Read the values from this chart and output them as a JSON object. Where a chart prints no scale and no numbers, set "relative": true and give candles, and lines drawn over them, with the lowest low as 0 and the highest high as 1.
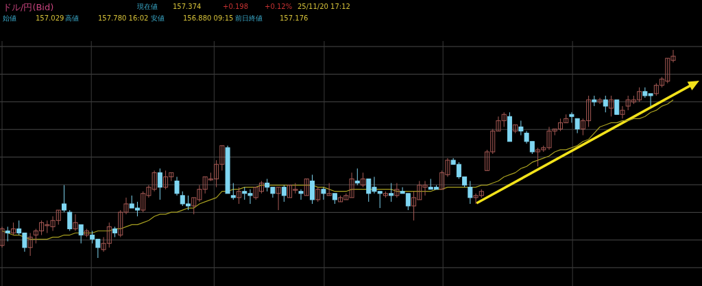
{
  "chart_data": {
    "type": "candlestick",
    "title": "ドル/円(Bid)",
    "annotations": [
      "現在値",
      "157.374",
      "+0.198",
      "+0.12%",
      "25/11/20 17:12",
      "始値",
      "157.029",
      "高値",
      "157.780 16:02",
      "安値",
      "156.880 09:15",
      "前日終値",
      "157.176"
    ],
    "relative": true,
    "grid": true,
    "categories": [
      null,
      null,
      null,
      null,
      null,
      null,
      null,
      null,
      null,
      null,
      null,
      null,
      null,
      null,
      null,
      null,
      null,
      null,
      null,
      null,
      null,
      null,
      null,
      null,
      null,
      null,
      null,
      null,
      null,
      null,
      null,
      null,
      null,
      null,
      null,
      null,
      null,
      null,
      null,
      null,
      null,
      null,
      null,
      null,
      null,
      null,
      null,
      null,
      null,
      null,
      null,
      null,
      null,
      null,
      null,
      null,
      null,
      null,
      null,
      null,
      null,
      null,
      null,
      null,
      null,
      null,
      null,
      null,
      null,
      null,
      null,
      null,
      null,
      null,
      null,
      null,
      null,
      null,
      null,
      null,
      null,
      null,
      null,
      null,
      null,
      null,
      null,
      null,
      null,
      null,
      null,
      null,
      null,
      null,
      null,
      null,
      null,
      null,
      null,
      null,
      null,
      null,
      null,
      null,
      null,
      null,
      null,
      null,
      null,
      null,
      null,
      null,
      null,
      null,
      null,
      null,
      null,
      null,
      null,
      null
    ],
    "ohlc": [
      [
        0.06,
        0.15,
        0.05,
        0.14
      ],
      [
        0.13,
        0.15,
        0.08,
        0.12
      ],
      [
        0.12,
        0.17,
        0.11,
        0.14
      ],
      [
        0.14,
        0.18,
        0.11,
        0.12
      ],
      [
        0.12,
        0.12,
        0.03,
        0.05
      ],
      [
        0.05,
        0.12,
        0.01,
        0.1
      ],
      [
        0.11,
        0.14,
        0.07,
        0.13
      ],
      [
        0.13,
        0.18,
        0.11,
        0.17
      ],
      [
        0.16,
        0.18,
        0.12,
        0.16
      ],
      [
        0.15,
        0.2,
        0.13,
        0.18
      ],
      [
        0.18,
        0.23,
        0.16,
        0.23
      ],
      [
        0.26,
        0.35,
        0.22,
        0.23
      ],
      [
        0.22,
        0.23,
        0.13,
        0.14
      ],
      [
        0.14,
        0.21,
        0.13,
        0.17
      ],
      [
        0.16,
        0.16,
        0.07,
        0.11
      ],
      [
        0.11,
        0.14,
        0.1,
        0.13
      ],
      [
        0.11,
        0.13,
        0.07,
        0.09
      ],
      [
        0.09,
        0.09,
        0,
        0.05
      ],
      [
        0.04,
        0.1,
        0.03,
        0.07
      ],
      [
        0.07,
        0.17,
        0.05,
        0.15
      ],
      [
        0.14,
        0.15,
        0.1,
        0.12
      ],
      [
        0.11,
        0.23,
        0.1,
        0.22
      ],
      [
        0.22,
        0.29,
        0.21,
        0.26
      ],
      [
        0.26,
        0.3,
        0.24,
        0.24
      ],
      [
        0.24,
        0.27,
        0.2,
        0.23
      ],
      [
        0.23,
        0.32,
        0.22,
        0.31
      ],
      [
        0.3,
        0.35,
        0.29,
        0.34
      ],
      [
        0.33,
        0.42,
        0.32,
        0.41
      ],
      [
        0.41,
        0.43,
        0.28,
        0.34
      ],
      [
        0.34,
        0.42,
        0.33,
        0.39
      ],
      [
        0.39,
        0.41,
        0.37,
        0.41
      ],
      [
        0.37,
        0.39,
        0.3,
        0.31
      ],
      [
        0.3,
        0.32,
        0.25,
        0.26
      ],
      [
        0.26,
        0.3,
        0.23,
        0.25
      ],
      [
        0.25,
        0.29,
        0.21,
        0.29
      ],
      [
        0.28,
        0.35,
        0.27,
        0.33
      ],
      [
        0.33,
        0.39,
        0.31,
        0.39
      ],
      [
        0.38,
        0.41,
        0.37,
        0.38
      ],
      [
        0.38,
        0.47,
        0.34,
        0.45
      ],
      [
        0.45,
        0.54,
        0.42,
        0.54
      ],
      [
        0.53,
        0.54,
        0.31,
        0.31
      ],
      [
        0.3,
        0.36,
        0.28,
        0.29
      ],
      [
        0.29,
        0.34,
        0.26,
        0.32
      ],
      [
        0.32,
        0.34,
        0.28,
        0.31
      ],
      [
        0.31,
        0.33,
        0.26,
        0.3
      ],
      [
        0.29,
        0.34,
        0.28,
        0.34
      ],
      [
        0.32,
        0.37,
        0.31,
        0.36
      ],
      [
        0.36,
        0.38,
        0.32,
        0.34
      ],
      [
        0.34,
        0.34,
        0.29,
        0.31
      ],
      [
        0.31,
        0.34,
        0.23,
        0.34
      ],
      [
        0.34,
        0.35,
        0.27,
        0.3
      ],
      [
        0.29,
        0.35,
        0.29,
        0.35
      ],
      [
        0.33,
        0.36,
        0.31,
        0.33
      ],
      [
        0.32,
        0.33,
        0.28,
        0.31
      ],
      [
        0.3,
        0.38,
        0.3,
        0.38
      ],
      [
        0.37,
        0.4,
        0.26,
        0.28
      ],
      [
        0.28,
        0.34,
        0.27,
        0.33
      ],
      [
        0.33,
        0.34,
        0.28,
        0.31
      ],
      [
        0.3,
        0.36,
        0.3,
        0.31
      ],
      [
        0.31,
        0.31,
        0.26,
        0.28
      ],
      [
        0.27,
        0.3,
        0.27,
        0.29
      ],
      [
        0.28,
        0.31,
        0.28,
        0.3
      ],
      [
        0.29,
        0.41,
        0.29,
        0.38
      ],
      [
        0.37,
        0.43,
        0.35,
        0.36
      ],
      [
        0.35,
        0.41,
        0.34,
        0.38
      ],
      [
        0.38,
        0.38,
        0.27,
        0.31
      ],
      [
        0.34,
        0.39,
        0.31,
        0.32
      ],
      [
        0.32,
        0.32,
        0.24,
        0.31
      ],
      [
        0.3,
        0.32,
        0.29,
        0.31
      ],
      [
        0.31,
        0.36,
        0.27,
        0.3
      ],
      [
        0.3,
        0.36,
        0.29,
        0.33
      ],
      [
        0.32,
        0.34,
        0.31,
        0.31
      ],
      [
        0.31,
        0.31,
        0.23,
        0.25
      ],
      [
        0.25,
        0.32,
        0.18,
        0.29
      ],
      [
        0.28,
        0.37,
        0.28,
        0.35
      ],
      [
        0.34,
        0.37,
        0.3,
        0.35
      ],
      [
        0.34,
        0.38,
        0.33,
        0.33
      ],
      [
        0.34,
        0.35,
        0.33,
        0.33
      ],
      [
        0.33,
        0.42,
        0.33,
        0.41
      ],
      [
        0.4,
        0.48,
        0.39,
        0.47
      ],
      [
        0.47,
        0.48,
        0.45,
        0.45
      ],
      [
        0.45,
        0.46,
        0.38,
        0.39
      ],
      [
        0.39,
        0.39,
        0.34,
        0.35
      ],
      [
        0.34,
        0.37,
        0.26,
        0.29
      ],
      [
        0.29,
        0.31,
        0.26,
        0.3
      ],
      [
        0.3,
        0.33,
        0.29,
        0.32
      ],
      [
        0.42,
        0.52,
        0.42,
        0.51
      ],
      [
        0.51,
        0.62,
        0.5,
        0.61
      ],
      [
        0.61,
        0.68,
        0.61,
        0.66
      ],
      [
        0.66,
        0.7,
        0.63,
        0.69
      ],
      [
        0.68,
        0.7,
        0.56,
        0.56
      ],
      [
        0.61,
        0.64,
        0.6,
        0.64
      ],
      [
        0.63,
        0.66,
        0.59,
        0.61
      ],
      [
        0.6,
        0.61,
        0.55,
        0.56
      ],
      [
        0.56,
        0.56,
        0.5,
        0.51
      ],
      [
        0.51,
        0.53,
        0.44,
        0.52
      ],
      [
        0.52,
        0.54,
        0.51,
        0.53
      ],
      [
        0.53,
        0.63,
        0.52,
        0.61
      ],
      [
        0.61,
        0.62,
        0.59,
        0.62
      ],
      [
        0.62,
        0.67,
        0.61,
        0.65
      ],
      [
        0.65,
        0.69,
        0.65,
        0.67
      ],
      [
        0.69,
        0.7,
        0.65,
        0.68
      ],
      [
        0.67,
        0.67,
        0.6,
        0.62
      ],
      [
        0.62,
        0.67,
        0.59,
        0.66
      ],
      [
        0.66,
        0.78,
        0.63,
        0.76
      ],
      [
        0.76,
        0.78,
        0.73,
        0.75
      ],
      [
        0.75,
        0.77,
        0.74,
        0.76
      ],
      [
        0.76,
        0.78,
        0.7,
        0.73
      ],
      [
        0.72,
        0.78,
        0.68,
        0.76
      ],
      [
        0.76,
        0.76,
        0.69,
        0.69
      ],
      [
        0.69,
        0.73,
        0.67,
        0.71
      ],
      [
        0.73,
        0.78,
        0.71,
        0.76
      ],
      [
        0.75,
        0.78,
        0.74,
        0.76
      ],
      [
        0.76,
        0.82,
        0.75,
        0.8
      ],
      [
        0.8,
        0.82,
        0.77,
        0.78
      ],
      [
        0.79,
        0.79,
        0.73,
        0.78
      ],
      [
        0.79,
        0.84,
        0.78,
        0.83
      ],
      [
        0.83,
        0.87,
        0.82,
        0.86
      ],
      [
        0.85,
        0.96,
        0.84,
        0.96
      ],
      [
        0.95,
        1,
        0.94,
        0.97
      ]
    ],
    "series": [
      {
        "type": "line",
        "color": "#a8a020",
        "values": [
          0.13,
          0.12,
          0.11,
          0.11,
          0.1,
          0.09,
          0.09,
          0.09,
          0.09,
          0.1,
          0.1,
          0.11,
          0.11,
          0.12,
          0.12,
          0.12,
          0.12,
          0.13,
          0.13,
          0.13,
          0.14,
          0.14,
          0.15,
          0.16,
          0.16,
          0.17,
          0.18,
          0.2,
          0.21,
          0.21,
          0.22,
          0.22,
          0.23,
          0.24,
          0.24,
          0.26,
          0.27,
          0.28,
          0.29,
          0.32,
          0.32,
          0.33,
          0.33,
          0.34,
          0.34,
          0.34,
          0.35,
          0.35,
          0.35,
          0.35,
          0.35,
          0.35,
          0.35,
          0.35,
          0.35,
          0.35,
          0.34,
          0.34,
          0.33,
          0.32,
          0.32,
          0.32,
          0.33,
          0.33,
          0.33,
          0.33,
          0.33,
          0.33,
          0.33,
          0.33,
          0.32,
          0.32,
          0.32,
          0.32,
          0.32,
          0.32,
          0.32,
          0.33,
          0.33,
          0.34,
          0.34,
          0.34,
          0.34,
          0.34,
          0.34,
          0.35,
          0.35,
          0.36,
          0.37,
          0.39,
          0.4,
          0.41,
          0.43,
          0.44,
          0.46,
          0.47,
          0.48,
          0.49,
          0.51,
          0.52,
          0.52,
          0.53,
          0.54,
          0.56,
          0.57,
          0.6,
          0.63,
          0.64,
          0.65,
          0.65,
          0.66,
          0.66,
          0.67,
          0.67,
          0.68,
          0.7,
          0.71,
          0.73,
          0.74,
          0.76
        ]
      }
    ]
  }
}
